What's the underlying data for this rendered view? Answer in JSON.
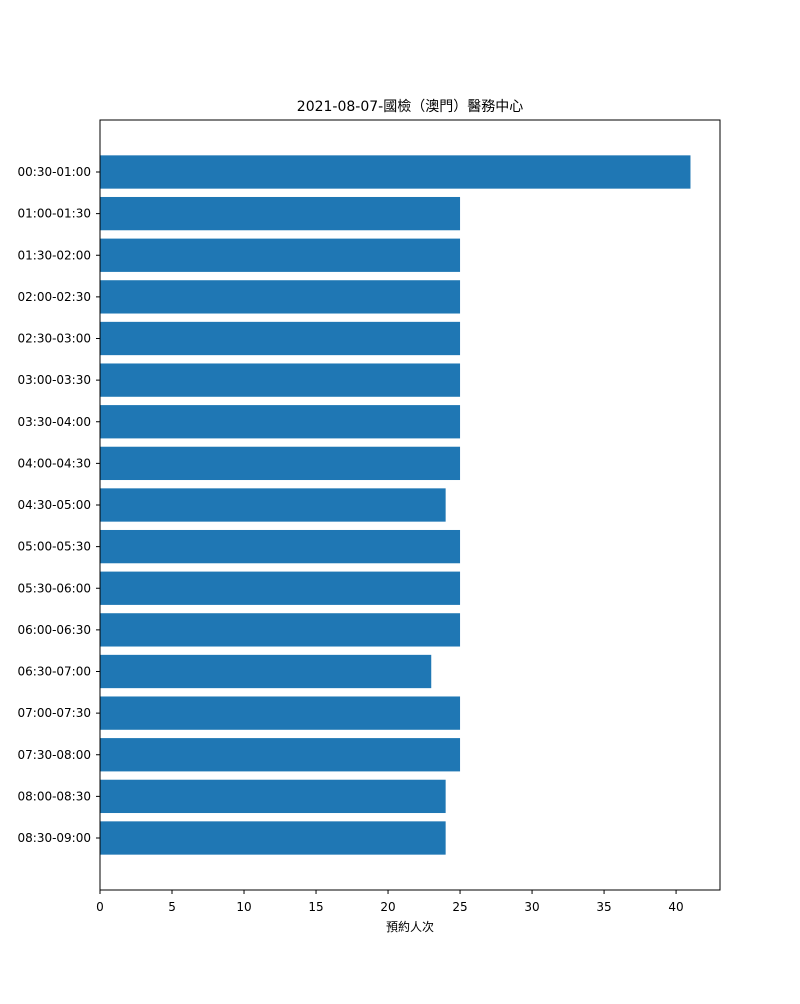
{
  "chart_data": {
    "type": "bar",
    "orientation": "horizontal",
    "title": "2021-08-07-國檢（澳門）醫務中心",
    "xlabel": "預約人次",
    "ylabel": "",
    "categories": [
      "00:30-01:00",
      "01:00-01:30",
      "01:30-02:00",
      "02:00-02:30",
      "02:30-03:00",
      "03:00-03:30",
      "03:30-04:00",
      "04:00-04:30",
      "04:30-05:00",
      "05:00-05:30",
      "05:30-06:00",
      "06:00-06:30",
      "06:30-07:00",
      "07:00-07:30",
      "07:30-08:00",
      "08:00-08:30",
      "08:30-09:00"
    ],
    "values": [
      41,
      25,
      25,
      25,
      25,
      25,
      25,
      25,
      24,
      25,
      25,
      25,
      23,
      25,
      25,
      24,
      24
    ],
    "xlim": [
      0,
      43.05
    ],
    "xticks": [
      0,
      5,
      10,
      15,
      20,
      25,
      30,
      35,
      40
    ],
    "bar_color": "#1f77b4",
    "grid": false,
    "legend": "none"
  }
}
